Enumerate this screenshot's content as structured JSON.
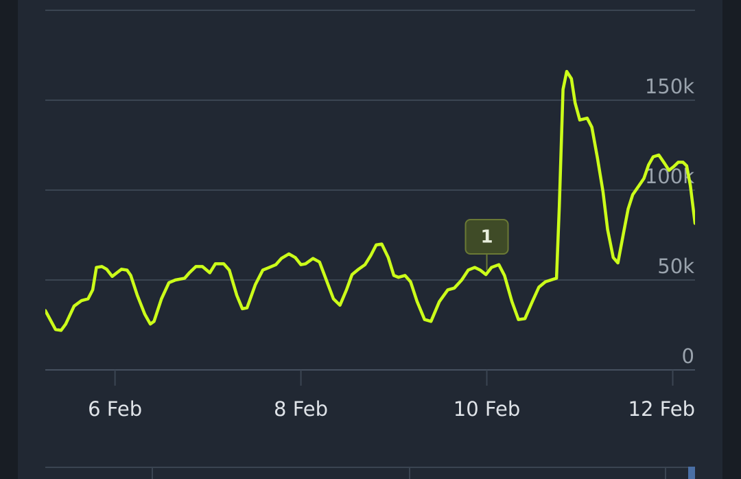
{
  "chart_data": {
    "type": "line",
    "x": [
      5.25,
      5.36,
      5.42,
      5.47,
      5.56,
      5.64,
      5.71,
      5.76,
      5.8,
      5.86,
      5.91,
      5.97,
      6.02,
      6.07,
      6.13,
      6.17,
      6.24,
      6.32,
      6.38,
      6.42,
      6.5,
      6.58,
      6.65,
      6.75,
      6.8,
      6.87,
      6.94,
      7.02,
      7.08,
      7.17,
      7.23,
      7.31,
      7.37,
      7.42,
      7.51,
      7.59,
      7.66,
      7.73,
      7.79,
      7.87,
      7.94,
      8.0,
      8.05,
      8.13,
      8.2,
      8.27,
      8.35,
      8.42,
      8.49,
      8.55,
      8.62,
      8.69,
      8.75,
      8.81,
      8.87,
      8.94,
      9.0,
      9.05,
      9.12,
      9.18,
      9.25,
      9.33,
      9.4,
      9.49,
      9.58,
      9.65,
      9.73,
      9.8,
      9.87,
      9.93,
      9.99,
      10.05,
      10.13,
      10.19,
      10.27,
      10.34,
      10.41,
      10.49,
      10.56,
      10.63,
      10.75,
      10.78,
      10.82,
      10.86,
      10.91,
      10.95,
      11.0,
      11.08,
      11.13,
      11.19,
      11.25,
      11.3,
      11.36,
      11.41,
      11.47,
      11.52,
      11.57,
      11.63,
      11.69,
      11.74,
      11.79,
      11.85,
      11.91,
      11.96,
      12.01,
      12.06,
      12.11,
      12.15,
      12.19,
      12.24
    ],
    "series": [
      {
        "color": "#ccff1a",
        "values": [
          33000,
          22500,
          22000,
          25500,
          35500,
          38500,
          39500,
          44500,
          57000,
          57500,
          56000,
          52000,
          54000,
          56000,
          55500,
          52500,
          41500,
          31000,
          25500,
          27000,
          39500,
          48500,
          50000,
          51000,
          54000,
          57500,
          57500,
          54000,
          59000,
          59000,
          55500,
          41500,
          34000,
          34500,
          47500,
          55500,
          57000,
          58500,
          62000,
          64500,
          62500,
          58500,
          59000,
          62000,
          60000,
          50500,
          39500,
          36000,
          44500,
          53000,
          56000,
          58500,
          63500,
          69500,
          70000,
          62500,
          52500,
          51500,
          52500,
          49000,
          38000,
          28000,
          27000,
          38000,
          44500,
          45500,
          50000,
          55500,
          57000,
          55500,
          53000,
          57000,
          58500,
          52500,
          38000,
          28000,
          28500,
          38000,
          46000,
          49000,
          51000,
          91000,
          156000,
          166000,
          162000,
          148500,
          139000,
          140000,
          135000,
          118000,
          99000,
          78000,
          62500,
          59500,
          76000,
          89500,
          97500,
          102000,
          106500,
          114000,
          118500,
          119500,
          115000,
          111000,
          113000,
          115500,
          115500,
          113500,
          102500,
          81500
        ]
      }
    ],
    "xlim": [
      5.25,
      12.24
    ],
    "xticks": [
      {
        "value": 6,
        "label": "6 Feb"
      },
      {
        "value": 8,
        "label": "8 Feb"
      },
      {
        "value": 10,
        "label": "10 Feb"
      },
      {
        "value": 12,
        "label": "12 Feb"
      }
    ],
    "ylim": [
      0,
      200000
    ],
    "yticks": [
      0,
      {
        "value": 50000,
        "label": "50k"
      },
      {
        "value": 100000,
        "label": "100k"
      },
      {
        "value": 150000,
        "label": "150k"
      }
    ],
    "grid": true,
    "annotations": [
      {
        "x": 10,
        "label": "1"
      }
    ]
  }
}
